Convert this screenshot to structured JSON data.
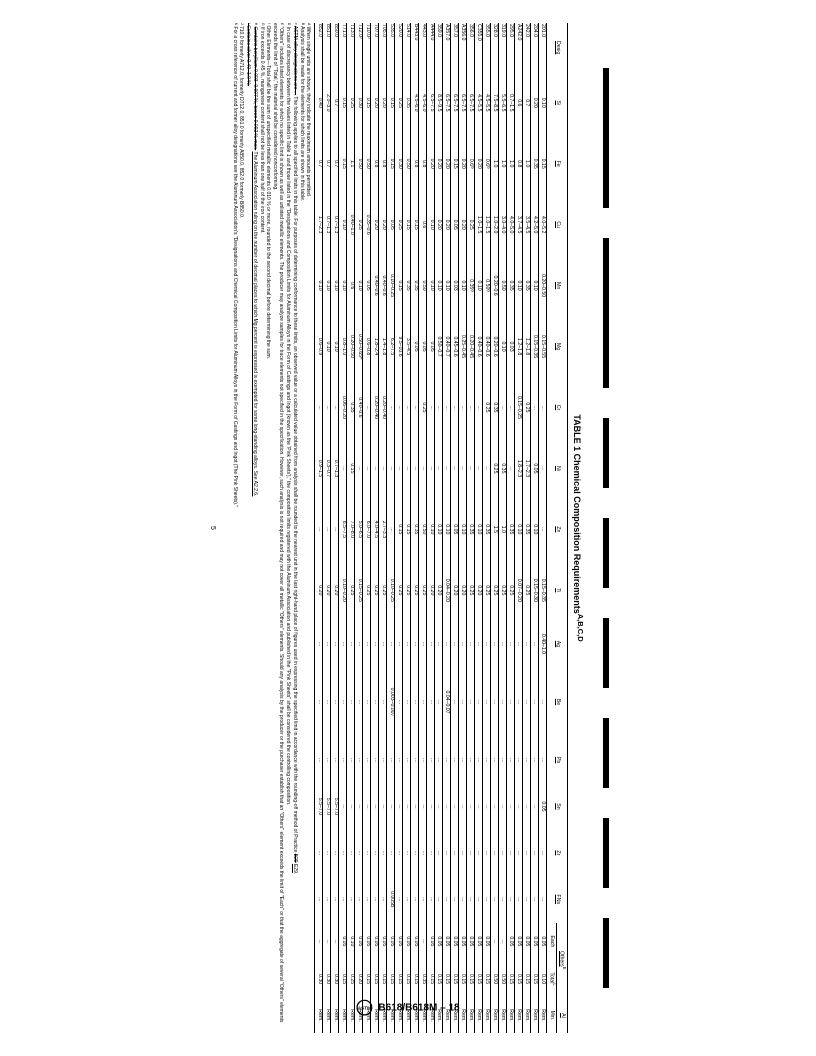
{
  "doc": {
    "standard": "B618/B618M – 18",
    "page_number": "5",
    "title": "TABLE 1 Chemical Composition Requirements",
    "title_super": "A,B,C,D"
  },
  "headers": {
    "desig": "Desig",
    "elements": [
      "Si",
      "Fe",
      "Cu",
      "Mn",
      "Mg",
      "Cr",
      "Ni",
      "Zn",
      "Ti",
      "Ag",
      "Be",
      "Pb",
      "Sn",
      "Zr",
      "FNs"
    ],
    "others": "Others",
    "others_sub": [
      "Each",
      "Total"
    ],
    "others_sup": "E",
    "total_sup": "L",
    "al": "Al",
    "al_sub": "Min."
  },
  "rows": [
    {
      "d": "201.0",
      "v": [
        "0.10",
        "0.15",
        "4.0–5.2",
        "0.20–0.50",
        "0.15–0.55",
        "...",
        "...",
        "...",
        "0.15–0.35",
        "0.40–1.0",
        "...",
        "...",
        "0.05",
        "...",
        "..."
      ],
      "oe": "0.05",
      "ot": "0.10",
      "al": "Rem."
    },
    {
      "d": "204.0",
      "v": [
        "0.20",
        "0.35",
        "4.2–5.0",
        "0.10",
        "0.15–0.35",
        "...",
        "0.05",
        "0.10",
        "0.15–0.30",
        "...",
        "...",
        "...",
        "...",
        "...",
        "..."
      ],
      "oe": "0.05",
      "ot": "0.15",
      "al": "Rem."
    },
    {
      "d": "242.0",
      "v": [
        "0.7",
        "1.0",
        "3.5–4.5",
        "0.35",
        "1.2–1.8",
        "0.25",
        "1.7–2.3",
        "0.35",
        "0.25",
        "...",
        "...",
        "...",
        "...",
        "...",
        "..."
      ],
      "oe": "0.05",
      "ot": "0.15",
      "al": "Rem."
    },
    {
      "d": "A242.0",
      "v": [
        "0.6",
        "0.8",
        "3.7–4.5",
        "0.10",
        "1.2–1.8",
        "0.15–0.25",
        "1.8–2.3",
        "0.10",
        "0.07–0.20",
        "...",
        "...",
        "...",
        "...",
        "...",
        "..."
      ],
      "oe": "0.05",
      "ot": "0.15",
      "al": "Rem."
    },
    {
      "d": "295.0",
      "v": [
        "0.7–1.5",
        "1.0",
        "4.0–5.0",
        "0.35",
        "0.03",
        "...",
        "...",
        "0.35",
        "0.25",
        "...",
        "...",
        "...",
        "...",
        "...",
        "..."
      ],
      "oe": "0.05",
      "ot": "0.15",
      "al": "Rem."
    },
    {
      "d": "319.0",
      "v": [
        "5.5–6.5",
        "1.0",
        "3.0–4.0",
        "0.50",
        "0.10",
        "...",
        "0.35",
        "1.0",
        "0.25",
        "...",
        "...",
        "...",
        "...",
        "...",
        "..."
      ],
      "oe": "...",
      "ot": "0.50",
      "al": "Rem."
    },
    {
      "d": "328.0",
      "v": [
        "7.5–8.5",
        "1.0",
        "1.0–2.0",
        "0.20–0.6",
        "0.20–0.6",
        "0.35",
        "0.25",
        "1.5",
        "0.25",
        "...",
        "...",
        "...",
        "...",
        "...",
        "..."
      ],
      "oe": "...",
      "ot": "0.50",
      "al": "Rem."
    },
    {
      "d": "355.0",
      "v": [
        "4.5–5.5",
        "0.6ᴳ",
        "1.0–1.5",
        "0.50ᴳ",
        "0.40–0.6",
        "0.25",
        "...",
        "0.35",
        "0.25",
        "...",
        "...",
        "...",
        "...",
        "...",
        "..."
      ],
      "oe": "0.05",
      "ot": "0.15",
      "al": "Rem."
    },
    {
      "d": "C355.0",
      "v": [
        "4.5–5.5",
        "0.20",
        "1.0–1.5",
        "0.10",
        "0.40–0.6",
        "...",
        "...",
        "0.10",
        "0.20",
        "...",
        "...",
        "...",
        "...",
        "...",
        "..."
      ],
      "oe": "0.05",
      "ot": "0.15",
      "al": "Rem."
    },
    {
      "d": "356.0",
      "v": [
        "6.5–7.5",
        "0.6ᴳ",
        "0.25",
        "0.35ᴳ",
        "0.20–0.45",
        "...",
        "...",
        "0.35",
        "0.25",
        "...",
        "...",
        "...",
        "...",
        "...",
        "..."
      ],
      "oe": "0.05",
      "ot": "0.15",
      "al": "Rem."
    },
    {
      "d": "A356.0",
      "v": [
        "6.5–7.5",
        "0.20",
        "0.20",
        "0.10",
        "0.25–0.45",
        "...",
        "...",
        "0.10",
        "0.20",
        "...",
        "...",
        "...",
        "...",
        "...",
        "..."
      ],
      "oe": "0.05",
      "ot": "0.15",
      "al": "Rem."
    },
    {
      "d": "357.0",
      "v": [
        "6.5–7.5",
        "0.15",
        "0.05",
        "0.03",
        "0.45–0.6",
        "...",
        "...",
        "0.05",
        "0.20",
        "...",
        "...",
        "...",
        "...",
        "...",
        "..."
      ],
      "oe": "0.05",
      "ot": "0.15",
      "al": "Rem."
    },
    {
      "d": "A357.0",
      "v": [
        "6.5–7.5",
        "0.20",
        "0.20",
        "0.10",
        "0.40–0.7",
        "...",
        "...",
        "0.10",
        "0.04–0.20",
        "...",
        "0.04–0.07",
        "...",
        "...",
        "...",
        "..."
      ],
      "oe": "0.05",
      "ot": "0.15",
      "al": "Rem."
    },
    {
      "d": "359.0",
      "v": [
        "8.5–9.5",
        "0.20",
        "0.20",
        "0.10",
        "0.50–0.7",
        "...",
        "...",
        "0.10",
        "0.20",
        "...",
        "...",
        "...",
        "...",
        "...",
        "..."
      ],
      "oe": "0.05",
      "ot": "0.15",
      "al": "Rem."
    },
    {
      "d": "A444.0",
      "v": [
        "6.5–7.5",
        "0.20",
        "0.10",
        "0.10",
        "0.05",
        "...",
        "...",
        "0.10",
        "0.20",
        "...",
        "...",
        "...",
        "...",
        "...",
        "..."
      ],
      "oe": "0.05",
      "ot": "0.15",
      "al": "Rem."
    },
    {
      "d": "443.0",
      "v": [
        "4.5–6.0",
        "0.8",
        "0.6",
        "0.50",
        "0.05",
        "0.25",
        "...",
        "0.50",
        "0.25",
        "...",
        "...",
        "...",
        "...",
        "...",
        "..."
      ],
      "oe": "...",
      "ot": "0.35",
      "al": "Rem."
    },
    {
      "d": "B443.0",
      "v": [
        "4.5–6.0",
        "0.8",
        "0.15",
        "0.35",
        "0.05",
        "...",
        "...",
        "0.35",
        "0.25",
        "...",
        "...",
        "...",
        "...",
        "...",
        "..."
      ],
      "oe": "0.05",
      "ot": "0.15",
      "al": "Rem."
    },
    {
      "d": "514.0",
      "v": [
        "0.35",
        "0.50",
        "0.15",
        "0.35",
        "3.5–4.5",
        "...",
        "...",
        "0.15",
        "0.25",
        "...",
        "...",
        "...",
        "...",
        "...",
        "..."
      ],
      "oe": "0.05",
      "ot": "0.15",
      "al": "Rem."
    },
    {
      "d": "520.0",
      "v": [
        "0.25",
        "0.30",
        "0.25",
        "0.15",
        "9.5–10.6",
        "...",
        "...",
        "0.15",
        "0.25",
        "...",
        "...",
        "...",
        "...",
        "...",
        "..."
      ],
      "oe": "0.05",
      "ot": "0.15",
      "al": "Rem."
    },
    {
      "d": "535.0",
      "v": [
        "0.15",
        "0.15",
        "0.05",
        "0.10–0.25",
        "6.2–7.5",
        "...",
        "...",
        "...",
        "0.10–0.25",
        "...",
        "0.003–0.007",
        "...",
        "...",
        "...",
        "0.005B"
      ],
      "oe": "0.05",
      "ot": "0.15",
      "al": "Rem."
    },
    {
      "d": "705.0",
      "v": [
        "0.20",
        "0.8",
        "0.20",
        "0.40–0.6",
        "1.4–1.8",
        "0.20–0.40",
        "...",
        "2.7–3.3",
        "0.25",
        "...",
        "...",
        "...",
        "...",
        "...",
        "..."
      ],
      "oe": "0.05",
      "ot": "0.15",
      "al": "Rem."
    },
    {
      "d": "707.0",
      "v": [
        "0.20",
        "0.8",
        "0.20",
        "0.40–0.6",
        "1.8–2.4",
        "0.20–0.40",
        "...",
        "4.0–4.5",
        "0.25",
        "...",
        "...",
        "...",
        "...",
        "...",
        "..."
      ],
      "oe": "0.05",
      "ot": "0.15",
      "al": "Rem."
    },
    {
      "d": "710.0ᴶ",
      "v": [
        "0.15",
        "0.50",
        "0.35–0.6",
        "0.05",
        "0.6–0.8",
        "...",
        "...",
        "6.0–7.0",
        "0.25",
        "...",
        "...",
        "...",
        "...",
        "...",
        "..."
      ],
      "oe": "0.05",
      "ot": "0.15",
      "al": "Rem."
    },
    {
      "d": "712.0ᴶ",
      "v": [
        "0.30",
        "0.50",
        "0.25",
        "0.10",
        "0.50–0.65ᴴ",
        "0.40–0.6",
        "...",
        "5.0–6.5",
        "0.15–0.25",
        "...",
        "...",
        "...",
        "...",
        "...",
        "..."
      ],
      "oe": "0.05",
      "ot": "0.20",
      "al": "Rem."
    },
    {
      "d": "713.0",
      "v": [
        "0.25",
        "1.1",
        "0.40–1.0",
        "0.6",
        "0.20–0.50",
        "0.35",
        "0.15",
        "7.0–8.0",
        "0.25",
        "...",
        "...",
        "...",
        "...",
        "...",
        "..."
      ],
      "oe": "0.10",
      "ot": "0.25",
      "al": "Rem."
    },
    {
      "d": "771.0",
      "v": [
        "0.15",
        "0.15",
        "0.10",
        "0.10",
        "0.8–1.0",
        "0.06–0.20",
        "...",
        "6.5–7.5",
        "0.10–0.20",
        "...",
        "...",
        "...",
        "...",
        "...",
        "..."
      ],
      "oe": "0.05",
      "ot": "0.15",
      "al": "Rem."
    },
    {
      "d": "850.0",
      "v": [
        "0.7",
        "0.7",
        "0.7–1.3",
        "0.10",
        "0.10",
        "...",
        "0.7–1.3",
        "...",
        "0.20",
        "...",
        "...",
        "...",
        "5.5–7.0",
        "...",
        "..."
      ],
      "oe": "...",
      "ot": "0.30",
      "al": "Rem."
    },
    {
      "d": "851.0",
      "v": [
        "2.0–3.0",
        "0.7",
        "0.7–1.3",
        "0.10",
        "0.10",
        "...",
        "0.3–0.7",
        "...",
        "0.20",
        "...",
        "...",
        "...",
        "5.5–7.0",
        "...",
        "..."
      ],
      "oe": "...",
      "ot": "0.30",
      "al": "Rem."
    },
    {
      "d": "852.0",
      "v": [
        "0.40",
        "0.7",
        "1.7–2.3",
        "0.10",
        "0.6–0.9",
        "...",
        "0.9–1.5",
        "...",
        "0.20",
        "...",
        "...",
        "...",
        "5.5–7.0",
        "...",
        "..."
      ],
      "oe": "...",
      "ot": "0.30",
      "al": "Rem."
    }
  ],
  "footnotes": [
    "ᴬ When single units are shown, they indicate the maximum amounts permitted.",
    "ᴮ Analysis shall be made for the elements for which limits are shown in this table.",
    "ᶜ ASTM alloy designations are ... The following applies to all specified limits in this table. For purposes of determining conformance to these limits, an observed value or a calculated value obtained from analysis shall be rounded to the nearest unit in the last right-hand place of figures used in expressing the specified limit in accordance with the rounding-off method of Practice B29 E29.",
    "ᴰ In case of discrepancy between the values listed in Table 1 and those listed in the \"Designations and Composition Limits for Aluminum Alloys in the Form of Castings and Ingot (known as the 'Pink Sheets'),\" the composition limits registered with the Aluminum Association and published in the \"Pink Sheets\" shall be considered the controlling composition.",
    "ᴱ \"Others\" includes listed elements for which no specific limit is shown as well as unlisted metallic elements. The producer may analyze samples for trace elements not specified in the specification. However, such analysis is not required and may not cover all metallic \"Others\" elements. Should any analysis by the producer or the purchaser establish that an \"Others\" element exceeds the limit of \"Each\" or that the aggregate of several \"Others\" elements exceeds the limit of \"Total,\" the material shall be considered nonconforming.",
    "ᶠ Other Elements—Total shall be the sum of unspecified metallic elements 0.010 % or more, rounded to the second decimal before determining the sum.",
    "ᴳ If iron exceeds 0.45 %, manganese content shall not be less than one half of the iron content.",
    "ᴴ Contains beryllium 0.003–0.007 %, boron 0.002 % max.  The Aluminum Association ruling on the number of decimal places to which Mg percent is expressed is exempted for some long-standing alloys. See A2.2.6.",
    "ᴵ Contains silver 0.40–1.0 %.",
    "ᴶ 710.0 formerly A712.0, formerly D712.0, 851.0 formerly A850.0, 852.0 formerly B850.0.",
    "ᴷ For a cross reference of current and former alloy designations see the Aluminum Association's \"Designations and Chemical Composition Limits for Aluminum Alloys in the Form of Castings and Ingot (The Pink Sheets).\""
  ],
  "redact_widths": [
    140,
    150,
    70,
    70,
    70,
    70,
    70,
    70
  ]
}
